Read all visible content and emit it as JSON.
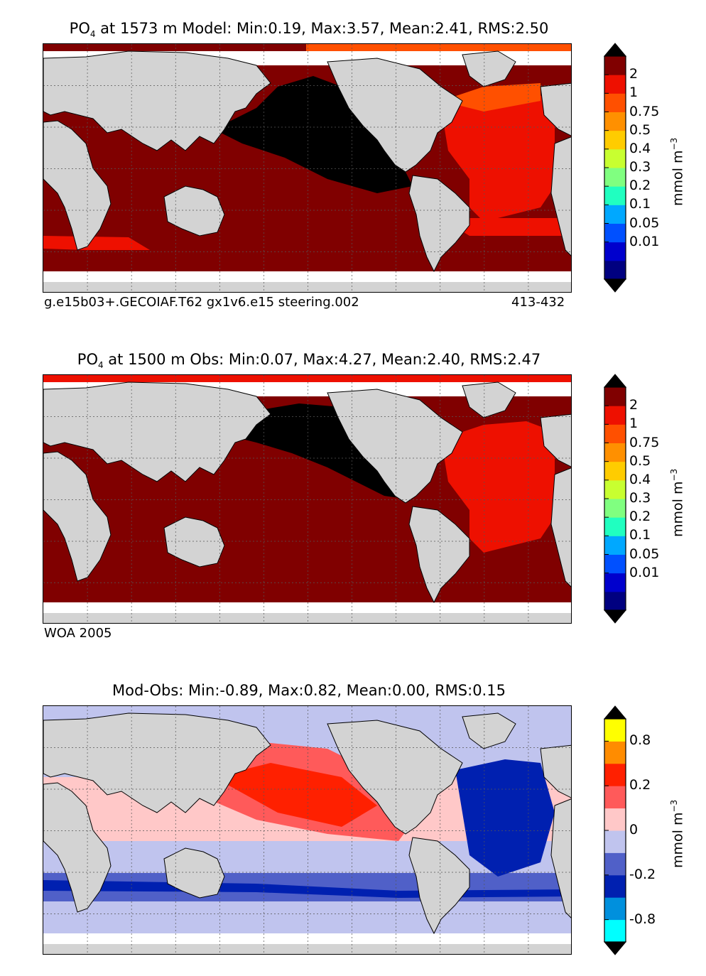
{
  "panels": {
    "model": {
      "title_prefix": "PO",
      "title_sub": "4",
      "title_rest": " at 1573 m Model: Min:0.19, Max:3.57, Mean:2.41, RMS:2.50",
      "footer_left": "g.e15b03+.GECOIAF.T62 gx1v6.e15 steering.002",
      "footer_right": "413-432"
    },
    "obs": {
      "title_prefix": "PO",
      "title_sub": "4",
      "title_rest": " at 1500 m Obs: Min:0.07, Max:4.27, Mean:2.40, RMS:2.47",
      "footer_left": "WOA 2005"
    },
    "diff": {
      "title": "Mod-Obs: Min:-0.89, Max:0.82, Mean:0.00, RMS:0.15"
    }
  },
  "colorbars": {
    "po4": {
      "unit_main": "mmol m",
      "unit_sup": "−3",
      "ticks": [
        "2",
        "1",
        "0.75",
        "0.5",
        "0.4",
        "0.3",
        "0.2",
        "0.1",
        "0.05",
        "0.01"
      ],
      "colors": [
        "#000080",
        "#0000cd",
        "#0050ff",
        "#00a8ff",
        "#20ffc0",
        "#80ff80",
        "#c8ff30",
        "#ffcc00",
        "#ff9000",
        "#ff5000",
        "#ee1000",
        "#800000"
      ],
      "top_arrow_color": "#000000",
      "bottom_arrow_color": "#000000"
    },
    "diff": {
      "unit_main": "mmol m",
      "unit_sup": "−3",
      "ticks": [
        "0.8",
        "0.2",
        "0",
        "-0.2",
        "-0.8"
      ],
      "colors": [
        "#00ffff",
        "#0090dd",
        "#0020b0",
        "#5060c8",
        "#c0c4ee",
        "#ffc8c8",
        "#ff5a5a",
        "#ff2000",
        "#ff8c00",
        "#ffff00"
      ],
      "top_arrow_color": "#000000",
      "bottom_arrow_color": "#000000"
    }
  },
  "colors": {
    "land": "#d3d3d3",
    "nodata": "#ffffff",
    "po4_high": "#800000",
    "po4_black": "#000000",
    "po4_red": "#ee1000",
    "po4_orange": "#ff5000",
    "diff_pos_strong": "#ff2000",
    "diff_pos_weak": "#ff5a5a",
    "diff_pos_light": "#ffc8c8",
    "diff_neg_light": "#c0c4ee",
    "diff_neg_mid": "#5060c8",
    "diff_neg_strong": "#0020b0"
  }
}
